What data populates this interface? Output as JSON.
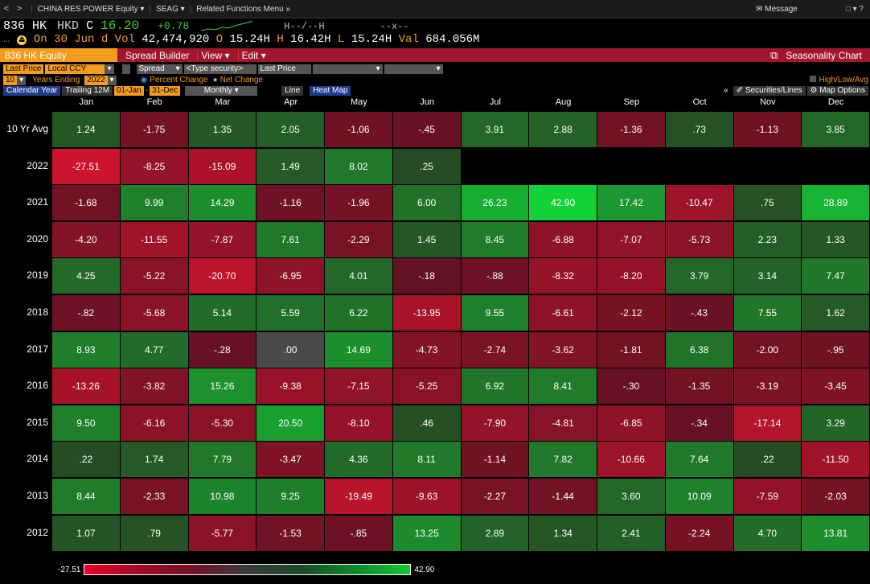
{
  "nav": {
    "back": "<",
    "forward": ">",
    "security": "CHINA RES POWER Equity",
    "function": "SEAG",
    "related": "Related Functions Menu",
    "message": "Message",
    "widgets": "□ ▾ ?"
  },
  "quote": {
    "ticker": "836 HK",
    "ccy": "HKD",
    "c_flag": "C",
    "price": "16.20",
    "change": "+0.78",
    "bidask": "H--/--H",
    "size": "--x--",
    "date_line": "On 30 Jun d",
    "vol_label": "Vol",
    "volume": "42,474,920",
    "open_label": "O",
    "open": "15.24H",
    "high_label": "H",
    "high": "16.42H",
    "low_label": "L",
    "low": "15.24H",
    "val_label": "Val",
    "value": "684.056M"
  },
  "titlebar": {
    "security": "836 HK Equity",
    "spread_builder": "Spread Builder",
    "view": "View",
    "edit": "Edit",
    "title": "Seasonality Chart"
  },
  "params": {
    "last_price": "Last Price",
    "local_ccy": "Local CCY",
    "spread": "Spread",
    "type_security": "<Type security>",
    "last_price2": "Last Price",
    "years": "10",
    "years_label": "Years Ending",
    "year_end": "2022",
    "pct_change": "Percent Change",
    "net_change": "Net Change",
    "high_low_avg": "High/Low/Avg",
    "calendar_year": "Calendar Year",
    "trailing": "Trailing 12M",
    "from": "01-Jan",
    "to": "31-Dec",
    "period": "Monthly",
    "line": "Line",
    "heat_map": "Heat Map",
    "securities_lines": "Securities/Lines",
    "map_options": "Map Options"
  },
  "colors": {
    "accent_orange": "#f39b1d",
    "title_red": "#a1162c",
    "positive_max": "#12c935",
    "negative_max": "#e8002a",
    "neutral": "#4a4a4a"
  },
  "months": [
    "Jan",
    "Feb",
    "Mar",
    "Apr",
    "May",
    "Jun",
    "Jul",
    "Aug",
    "Sep",
    "Oct",
    "Nov",
    "Dec"
  ],
  "rows": [
    {
      "label": "10 Yr Avg",
      "values": [
        "1.24",
        "-1.75",
        "1.35",
        "2.05",
        "-1.06",
        "-.45",
        "3.91",
        "2.88",
        "-1.36",
        ".73",
        "-1.13",
        "3.85"
      ]
    },
    {
      "label": "2022",
      "values": [
        "-27.51",
        "-8.25",
        "-15.09",
        "1.49",
        "8.02",
        ".25",
        "",
        "",
        "",
        "",
        "",
        ""
      ]
    },
    {
      "label": "2021",
      "values": [
        "-1.68",
        "9.99",
        "14.29",
        "-1.16",
        "-1.96",
        "6.00",
        "26.23",
        "42.90",
        "17.42",
        "-10.47",
        ".75",
        "28.89"
      ]
    },
    {
      "label": "2020",
      "values": [
        "-4.20",
        "-11.55",
        "-7.87",
        "7.61",
        "-2.29",
        "1.45",
        "8.45",
        "-6.88",
        "-7.07",
        "-5.73",
        "2.23",
        "1.33"
      ]
    },
    {
      "label": "2019",
      "values": [
        "4.25",
        "-5.22",
        "-20.70",
        "-6.95",
        "4.01",
        "-.18",
        "-.88",
        "-8.32",
        "-8.20",
        "3.79",
        "3.14",
        "7.47"
      ]
    },
    {
      "label": "2018",
      "values": [
        "-.82",
        "-5.68",
        "5.14",
        "5.59",
        "6.22",
        "-13.95",
        "9.55",
        "-6.61",
        "-2.12",
        "-.43",
        "7.55",
        "1.62"
      ]
    },
    {
      "label": "2017",
      "values": [
        "8.93",
        "4.77",
        "-.28",
        ".00",
        "14.69",
        "-4.73",
        "-2.74",
        "-3.62",
        "-1.81",
        "6.38",
        "-2.00",
        "-.95"
      ]
    },
    {
      "label": "2016",
      "values": [
        "-13.26",
        "-3.82",
        "15.26",
        "-9.38",
        "-7.15",
        "-5.25",
        "6.92",
        "8.41",
        "-.30",
        "-1.35",
        "-3.19",
        "-3.45"
      ]
    },
    {
      "label": "2015",
      "values": [
        "9.50",
        "-6.16",
        "-5.30",
        "20.50",
        "-8.10",
        ".46",
        "-7.90",
        "-4.81",
        "-6.85",
        "-.34",
        "-17.14",
        "3.29"
      ]
    },
    {
      "label": "2014",
      "values": [
        ".22",
        "1.74",
        "7.79",
        "-3.47",
        "4.36",
        "8.11",
        "-1.14",
        "7.82",
        "-10.66",
        "7.64",
        ".22",
        "-11.50"
      ]
    },
    {
      "label": "2013",
      "values": [
        "8.44",
        "-2.33",
        "10.98",
        "9.25",
        "-19.49",
        "-9.63",
        "-2.27",
        "-1.44",
        "3.60",
        "10.09",
        "-7.59",
        "-2.03"
      ]
    },
    {
      "label": "2012",
      "values": [
        "1.07",
        ".79",
        "-5.77",
        "-1.53",
        "-.85",
        "13.25",
        "2.89",
        "1.34",
        "2.41",
        "-2.24",
        "4.70",
        "13.81"
      ]
    }
  ],
  "legend": {
    "min": "-27.51",
    "max": "42.90"
  }
}
